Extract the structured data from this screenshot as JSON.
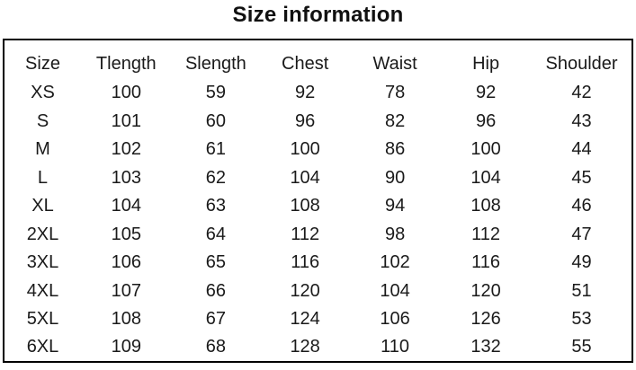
{
  "page_title": "Size information",
  "chart_data": {
    "type": "table",
    "title": "Size information",
    "columns": [
      "Size",
      "Tlength",
      "Slength",
      "Chest",
      "Waist",
      "Hip",
      "Shoulder"
    ],
    "rows": [
      [
        "XS",
        100,
        59,
        92,
        78,
        92,
        42
      ],
      [
        "S",
        101,
        60,
        96,
        82,
        96,
        43
      ],
      [
        "M",
        102,
        61,
        100,
        86,
        100,
        44
      ],
      [
        "L",
        103,
        62,
        104,
        90,
        104,
        45
      ],
      [
        "XL",
        104,
        63,
        108,
        94,
        108,
        46
      ],
      [
        "2XL",
        105,
        64,
        112,
        98,
        112,
        47
      ],
      [
        "3XL",
        106,
        65,
        116,
        102,
        116,
        49
      ],
      [
        "4XL",
        107,
        66,
        120,
        104,
        120,
        51
      ],
      [
        "5XL",
        108,
        67,
        124,
        106,
        126,
        53
      ],
      [
        "6XL",
        109,
        68,
        128,
        110,
        132,
        55
      ]
    ],
    "header_row": true,
    "grid": "outer-border-only",
    "layout": "title-above-centered"
  },
  "colors": {
    "text": "#1a1a1a",
    "title_text": "#111111",
    "border": "#000000",
    "background": "#ffffff"
  }
}
